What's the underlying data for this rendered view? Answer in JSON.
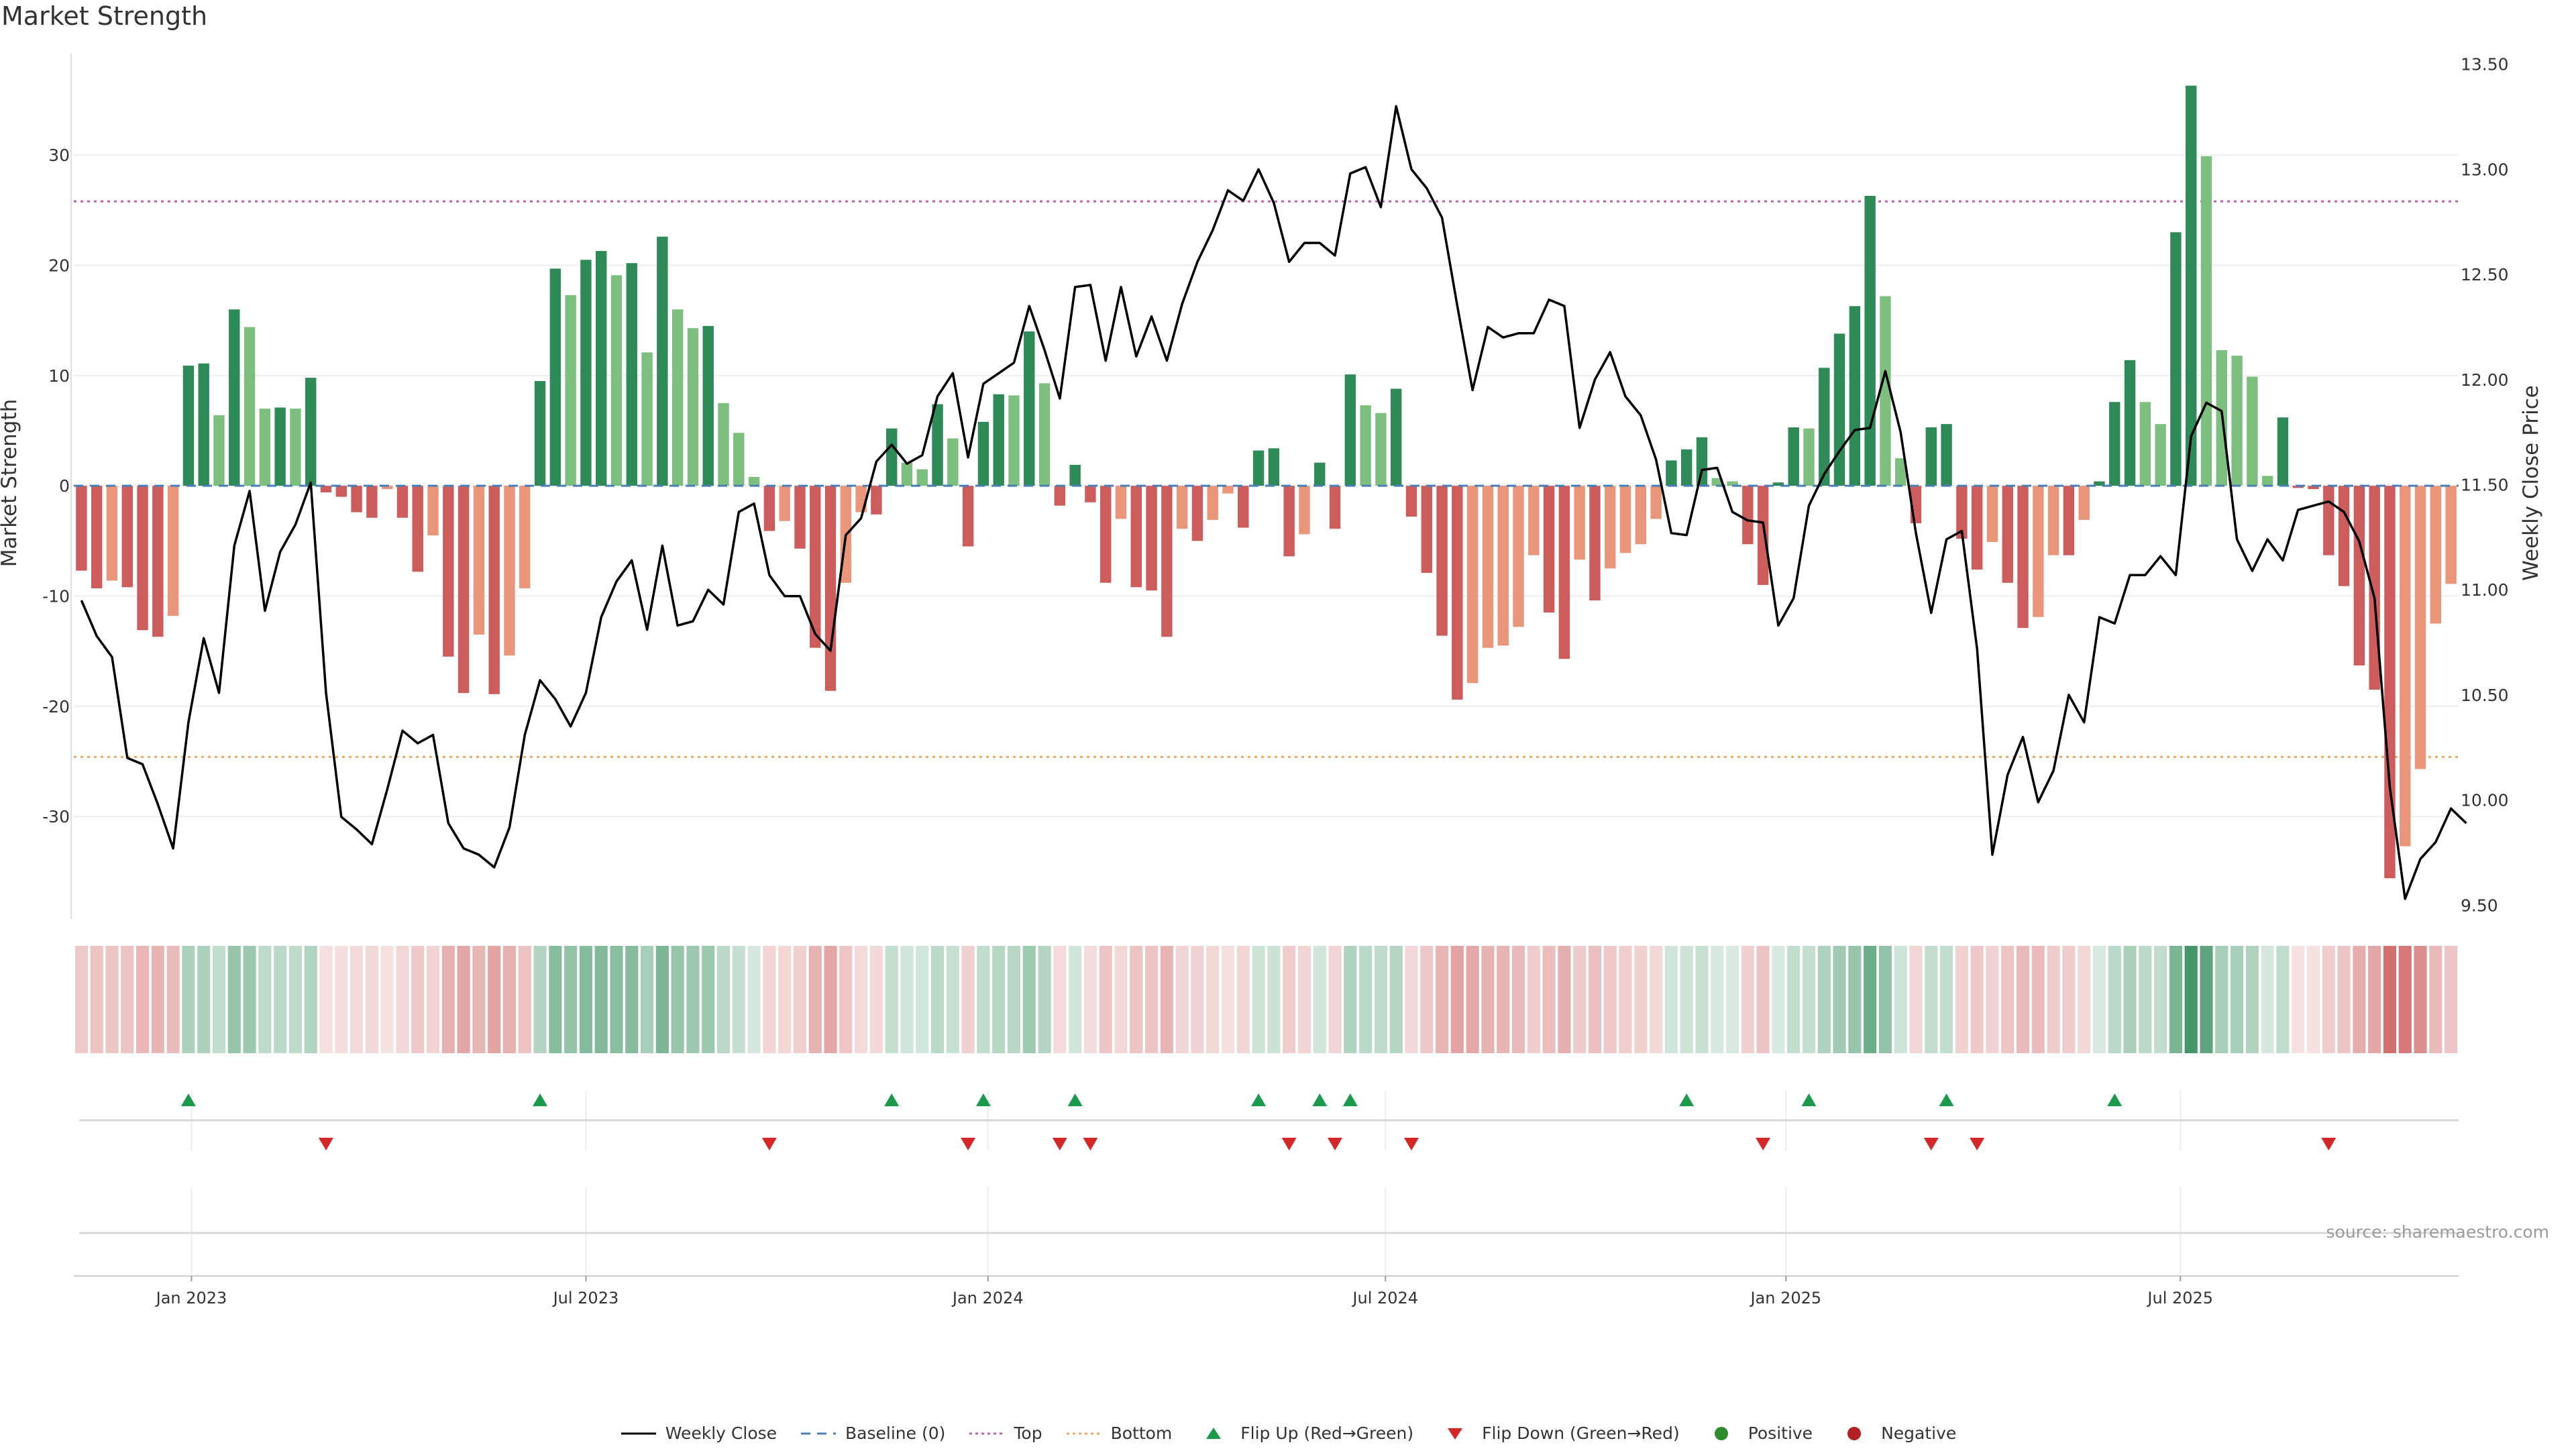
{
  "chart_data": {
    "type": "bar",
    "title": "Market Strength",
    "ylabel_left": "Market Strength",
    "ylabel_right": "Weekly Close Price",
    "yticks_left": [
      30,
      20,
      10,
      0,
      -10,
      -20,
      -30
    ],
    "yticks_right": [
      "13.50",
      "13.00",
      "12.50",
      "12.00",
      "11.50",
      "11.00",
      "10.50",
      "10.00",
      "9.50"
    ],
    "ylim_left": [
      -39,
      39.2
    ],
    "ylim_right": [
      9.45,
      13.55
    ],
    "top_threshold": 25.8,
    "bottom_threshold": -24.6,
    "x_ticks": [
      {
        "label": "Jan 2023",
        "week": 7.7
      },
      {
        "label": "Jul 2023",
        "week": 33.5
      },
      {
        "label": "Jan 2024",
        "week": 59.8
      },
      {
        "label": "Jul 2024",
        "week": 85.8
      },
      {
        "label": "Jan 2025",
        "week": 112.0
      },
      {
        "label": "Jul 2025",
        "week": 137.8
      }
    ],
    "series": [
      {
        "name": "Market Strength",
        "values": [
          -7.7,
          -9.3,
          -8.6,
          -9.2,
          -13.1,
          -13.7,
          -11.8,
          10.9,
          11.1,
          6.4,
          16.0,
          14.4,
          7.0,
          7.1,
          7.0,
          9.8,
          -0.6,
          -1.0,
          -2.4,
          -2.9,
          -0.3,
          -2.9,
          -7.8,
          -4.5,
          -15.5,
          -18.8,
          -13.5,
          -18.9,
          -15.4,
          -9.3,
          9.5,
          19.7,
          17.3,
          20.5,
          21.3,
          19.1,
          20.2,
          12.1,
          22.6,
          16.0,
          14.3,
          14.5,
          7.5,
          4.8,
          0.8,
          -4.1,
          -3.2,
          -5.7,
          -14.7,
          -18.6,
          -8.8,
          -2.4,
          -2.6,
          5.2,
          2.1,
          1.5,
          7.4,
          4.3,
          -5.5,
          5.8,
          8.3,
          8.2,
          14.0,
          9.3,
          -1.8,
          1.9,
          -1.5,
          -8.8,
          -3.0,
          -9.2,
          -9.5,
          -13.7,
          -3.9,
          -5.0,
          -3.1,
          -0.7,
          -3.8,
          3.2,
          3.4,
          -6.4,
          -4.4,
          2.1,
          -3.9,
          10.1,
          7.3,
          6.6,
          8.8,
          -2.8,
          -7.9,
          -13.6,
          -19.4,
          -17.9,
          -14.7,
          -14.5,
          -12.8,
          -6.3,
          -11.5,
          -15.7,
          -6.7,
          -10.4,
          -7.5,
          -6.1,
          -5.3,
          -3.0,
          2.3,
          3.3,
          4.4,
          0.7,
          0.4,
          -5.3,
          -9.0,
          0.3,
          5.3,
          5.2,
          10.7,
          13.8,
          16.3,
          26.3,
          17.2,
          2.5,
          -3.4,
          5.3,
          5.6,
          -4.8,
          -7.6,
          -5.1,
          -8.8,
          -12.9,
          -11.9,
          -6.3,
          -6.3,
          -3.1,
          0.4,
          7.6,
          11.4,
          7.6,
          5.6,
          23.0,
          36.3,
          29.9,
          12.3,
          11.8,
          9.9,
          0.9,
          6.2,
          -0.2,
          -0.3,
          -6.3,
          -9.1,
          -16.3,
          -18.5,
          -35.6,
          -32.7,
          -25.7,
          -12.5,
          -8.9
        ]
      },
      {
        "name": "Weekly Close",
        "values": [
          10.95,
          10.78,
          10.68,
          10.2,
          10.17,
          9.98,
          9.77,
          10.37,
          10.77,
          10.51,
          11.21,
          11.47,
          10.9,
          11.18,
          11.31,
          11.51,
          10.51,
          9.92,
          9.86,
          9.79,
          10.05,
          10.33,
          10.27,
          10.31,
          9.89,
          9.77,
          9.74,
          9.68,
          9.87,
          10.31,
          10.57,
          10.48,
          10.35,
          10.51,
          10.87,
          11.04,
          11.14,
          10.81,
          11.21,
          10.83,
          10.85,
          11.0,
          10.93,
          11.37,
          11.41,
          11.07,
          10.97,
          10.97,
          10.79,
          10.71,
          11.26,
          11.34,
          11.61,
          11.69,
          11.6,
          11.64,
          11.92,
          12.03,
          11.63,
          11.98,
          12.03,
          12.08,
          12.35,
          12.14,
          11.91,
          12.44,
          12.45,
          12.09,
          12.44,
          12.11,
          12.3,
          12.09,
          12.36,
          12.56,
          12.71,
          12.9,
          12.85,
          13.0,
          12.84,
          12.56,
          12.65,
          12.65,
          12.59,
          12.98,
          13.01,
          12.82,
          13.3,
          13.0,
          12.91,
          12.77,
          12.35,
          11.95,
          12.25,
          12.2,
          12.22,
          12.22,
          12.38,
          12.35,
          11.77,
          12.0,
          12.13,
          11.92,
          11.83,
          11.62,
          11.27,
          11.26,
          11.57,
          11.58,
          11.37,
          11.33,
          11.32,
          10.83,
          10.96,
          11.4,
          11.55,
          11.66,
          11.76,
          11.77,
          12.04,
          11.75,
          11.27,
          10.89,
          11.24,
          11.28,
          10.72,
          9.74,
          10.12,
          10.3,
          9.99,
          10.14,
          10.5,
          10.37,
          10.87,
          10.84,
          11.07,
          11.07,
          11.16,
          11.07,
          11.73,
          11.89,
          11.85,
          11.24,
          11.09,
          11.24,
          11.14,
          11.38,
          11.4,
          11.42,
          11.37,
          11.23,
          10.96,
          10.06,
          9.53,
          9.72,
          9.8,
          9.96,
          9.89
        ]
      }
    ],
    "flips_up": [
      7,
      30,
      53,
      59,
      65,
      77,
      81,
      83,
      105,
      113,
      122,
      133
    ],
    "flips_down": [
      16,
      45,
      58,
      64,
      66,
      79,
      82,
      87,
      110,
      121,
      124,
      147
    ],
    "colors": {
      "strong_green": "#2e8b57",
      "light_green": "#7dbf7f",
      "strong_red": "#cd5c5c",
      "light_red": "#e9967a",
      "price_line": "#000000",
      "baseline": "#4a7fb5",
      "top_line": "#c25fb3",
      "bottom_line": "#f0a860",
      "flip_up": "#1a9a4a",
      "flip_down": "#d62728",
      "positive": "#2e8b2e",
      "negative": "#b22222"
    },
    "legend": [
      {
        "label": "Weekly Close",
        "kind": "line-black"
      },
      {
        "label": "Baseline (0)",
        "kind": "dash-blue"
      },
      {
        "label": "Top",
        "kind": "dot-purple"
      },
      {
        "label": "Bottom",
        "kind": "dot-orange"
      },
      {
        "label": "Flip Up (Red→Green)",
        "kind": "tri-up"
      },
      {
        "label": "Flip Down (Green→Red)",
        "kind": "tri-down"
      },
      {
        "label": "Positive",
        "kind": "dot-green"
      },
      {
        "label": "Negative",
        "kind": "dot-red"
      }
    ]
  },
  "source_note": "source: sharemaestro.com"
}
